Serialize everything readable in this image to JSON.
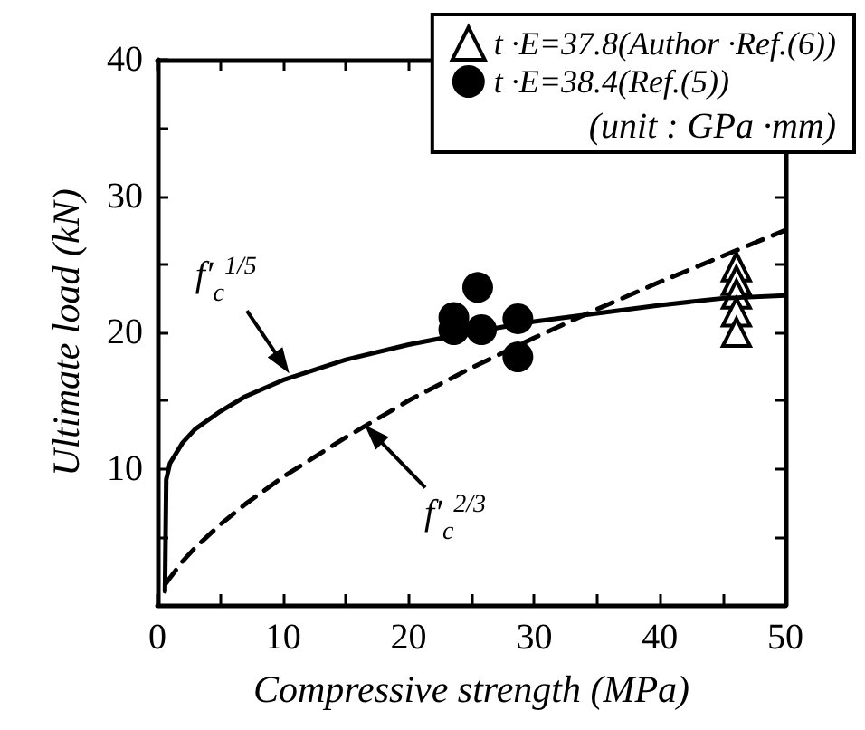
{
  "chart_data": {
    "type": "scatter",
    "xlabel": "Compressive strength (MPa)",
    "ylabel": "Ultimate load (kN)",
    "xlim": [
      0,
      50
    ],
    "xticks": [
      0,
      {
        "value": 5,
        "label": null
      },
      10,
      {
        "value": 15,
        "label": null
      },
      20,
      {
        "value": 25,
        "label": null
      },
      30,
      {
        "value": 35,
        "label": null
      },
      40,
      {
        "value": 45,
        "label": null
      },
      50
    ],
    "ylim": [
      0,
      40
    ],
    "yticks": [
      {
        "value": 5,
        "label": null
      },
      10,
      {
        "value": 15,
        "label": null
      },
      20,
      {
        "value": 25,
        "label": null
      },
      30,
      {
        "value": 35,
        "label": null
      },
      40
    ],
    "grid": false,
    "legend": "top right",
    "series": [
      {
        "type": "line",
        "color": "#000000",
        "marker": "none",
        "line_style": "solid",
        "x": [
          0.6,
          0.7,
          1,
          2,
          3,
          5,
          7,
          10,
          15,
          20,
          25,
          30,
          35,
          40,
          45,
          50
        ],
        "values": [
          1,
          9.2,
          10.4,
          11.9,
          12.9,
          14.2,
          15.3,
          16.5,
          18.0,
          19.1,
          20.0,
          20.8,
          21.4,
          22.0,
          22.5,
          22.7
        ]
      },
      {
        "type": "line",
        "color": "#000000",
        "marker": "none",
        "line_style": "dashed",
        "x": [
          0.7,
          1,
          2,
          3,
          5,
          7,
          10,
          15,
          20,
          25,
          30,
          35,
          40,
          45,
          50
        ],
        "values": [
          1.6,
          2.0,
          3.2,
          4.2,
          5.9,
          7.4,
          9.4,
          12.3,
          15.0,
          17.4,
          19.6,
          21.7,
          23.7,
          25.6,
          27.5
        ]
      },
      {
        "type": "scatter",
        "name": "t ·E=37.8(Author ·Ref.(6))",
        "color": "#000000",
        "marker": "triangle",
        "x": [
          46.1,
          46.1,
          46.1,
          46.1,
          46.1
        ],
        "values": [
          24.8,
          23.8,
          22.8,
          21.5,
          20.0
        ]
      },
      {
        "type": "scatter",
        "name": "t ·E=38.4(Ref.(5))",
        "color": "#000000",
        "marker": "circle",
        "x": [
          23.6,
          23.6,
          25.5,
          25.8,
          28.7,
          28.7
        ],
        "values": [
          21.1,
          20.2,
          23.3,
          20.2,
          21.0,
          18.2
        ]
      }
    ],
    "annotations": [
      {
        "text": "f′$_{c}$$^{1/5}$",
        "x": 10.5,
        "y": 17
      },
      {
        "text": "f′$_{c}$$^{2/3}$",
        "x": 16.5,
        "y": 13.2
      },
      "(unit : GPa ·mm)"
    ]
  }
}
